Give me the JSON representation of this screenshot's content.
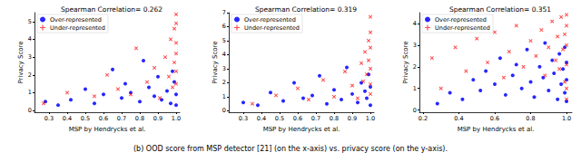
{
  "caption": "(b) OOD score from MSP detector [21] (on the x-axis) vs. privacy score (on the y-axis).",
  "chart_data": [
    {
      "type": "scatter",
      "title": "Spearman Correlation= 0.262",
      "x_label": "MSP by Hendrycks et al.",
      "y_label": "Privacy Score",
      "legend": "upper left",
      "grid": false,
      "xlim": [
        0.22,
        1.02
      ],
      "xticks": [
        0.3,
        0.4,
        0.5,
        0.6,
        0.7,
        0.8,
        0.9,
        {
          "value": 1,
          "label": "1.0"
        }
      ],
      "ylim": [
        -0.1,
        5.5
      ],
      "yticks": [
        0,
        1,
        2,
        3,
        4,
        5
      ],
      "series": [
        {
          "name": "Over-represented",
          "color": "#0000ff",
          "marker": "circle",
          "x": [
            0.28,
            0.35,
            0.42,
            0.5,
            0.55,
            0.6,
            0.65,
            0.7,
            0.72,
            0.75,
            0.8,
            0.82,
            0.85,
            0.88,
            0.9,
            0.92,
            0.95,
            0.97,
            0.98,
            0.99,
            1.0,
            1.0
          ],
          "values": [
            0.5,
            0.3,
            0.6,
            1.2,
            0.4,
            0.9,
            2.3,
            0.7,
            1.5,
            1.0,
            0.5,
            2.8,
            1.3,
            0.8,
            1.9,
            0.6,
            1.1,
            0.4,
            2.2,
            1.6,
            0.3,
            0.9
          ]
        },
        {
          "name": "Under-represented",
          "color": "#ff0000",
          "marker": "x",
          "x": [
            0.27,
            0.4,
            0.55,
            0.62,
            0.68,
            0.75,
            0.78,
            0.84,
            0.88,
            0.91,
            0.94,
            0.96,
            0.97,
            0.98,
            0.99,
            0.99,
            1.0,
            1.0,
            1.0,
            1.0,
            1.0,
            1.0
          ],
          "values": [
            0.4,
            1.0,
            0.8,
            2.0,
            1.2,
            0.9,
            3.5,
            1.6,
            2.4,
            0.7,
            3.0,
            1.9,
            4.0,
            1.3,
            2.7,
            4.6,
            5.4,
            4.9,
            3.8,
            3.2,
            2.2,
            1.5
          ]
        }
      ]
    },
    {
      "type": "scatter",
      "title": "Spearman Correlation= 0.319",
      "x_label": "MSP by Hendrycks et al.",
      "y_label": "Privacy Score",
      "legend": "upper left",
      "grid": false,
      "xlim": [
        0.22,
        1.02
      ],
      "xticks": [
        0.3,
        0.4,
        0.5,
        0.6,
        0.7,
        0.8,
        0.9,
        {
          "value": 1,
          "label": "1.0"
        }
      ],
      "ylim": [
        -0.1,
        7
      ],
      "yticks": [
        0,
        1,
        2,
        3,
        4,
        5,
        6,
        7
      ],
      "series": [
        {
          "name": "Over-represented",
          "color": "#0000ff",
          "marker": "circle",
          "x": [
            0.3,
            0.38,
            0.45,
            0.52,
            0.58,
            0.63,
            0.68,
            0.72,
            0.76,
            0.8,
            0.84,
            0.87,
            0.9,
            0.93,
            0.95,
            0.97,
            0.98,
            0.99,
            1.0,
            1.0
          ],
          "values": [
            0.6,
            0.4,
            1.3,
            0.7,
            2.0,
            0.9,
            1.1,
            2.5,
            0.5,
            1.5,
            0.8,
            3.1,
            1.2,
            0.6,
            2.0,
            1.4,
            0.9,
            2.6,
            0.4,
            1.7
          ]
        },
        {
          "name": "Under-represented",
          "color": "#ff0000",
          "marker": "x",
          "x": [
            0.35,
            0.48,
            0.6,
            0.66,
            0.74,
            0.8,
            0.86,
            0.9,
            0.93,
            0.95,
            0.96,
            0.97,
            0.98,
            0.99,
            0.99,
            1.0,
            1.0,
            1.0,
            1.0,
            1.0,
            1.0
          ],
          "values": [
            0.5,
            1.1,
            1.6,
            0.8,
            2.2,
            1.0,
            2.8,
            1.8,
            0.9,
            3.4,
            2.1,
            4.2,
            2.6,
            3.6,
            5.0,
            6.7,
            5.6,
            4.5,
            3.0,
            1.9,
            1.2
          ]
        }
      ]
    },
    {
      "type": "scatter",
      "title": "Spearman Correlation= 0.351",
      "x_label": "MSP by Hendrycks et al.",
      "y_label": "Privacy Score",
      "legend": "upper left",
      "grid": false,
      "xlim": [
        0.18,
        1.03
      ],
      "xticks": [
        0.2,
        0.4,
        0.6,
        0.8,
        {
          "value": 1,
          "label": "1.0"
        }
      ],
      "ylim": [
        -0.1,
        4.5
      ],
      "yticks": [
        0,
        1,
        2,
        3,
        4
      ],
      "series": [
        {
          "name": "Over-represented",
          "color": "#0000ff",
          "marker": "circle",
          "x": [
            0.28,
            0.35,
            0.42,
            0.48,
            0.52,
            0.55,
            0.6,
            0.63,
            0.66,
            0.7,
            0.72,
            0.75,
            0.78,
            0.8,
            0.82,
            0.85,
            0.87,
            0.88,
            0.9,
            0.92,
            0.93,
            0.95,
            0.96,
            0.97,
            0.98,
            0.99,
            0.99,
            1.0,
            1.0,
            1.0
          ],
          "values": [
            0.3,
            0.8,
            0.5,
            1.4,
            0.9,
            1.8,
            1.2,
            2.4,
            0.7,
            1.6,
            2.1,
            1.0,
            2.8,
            1.3,
            0.6,
            2.0,
            1.5,
            3.1,
            0.9,
            2.3,
            1.7,
            0.5,
            2.6,
            1.2,
            1.9,
            0.8,
            2.9,
            1.4,
            0.4,
            2.2
          ]
        },
        {
          "name": "Under-represented",
          "color": "#ff0000",
          "marker": "x",
          "x": [
            0.25,
            0.3,
            0.38,
            0.44,
            0.5,
            0.56,
            0.6,
            0.65,
            0.68,
            0.72,
            0.76,
            0.8,
            0.83,
            0.86,
            0.88,
            0.9,
            0.92,
            0.94,
            0.95,
            0.96,
            0.97,
            0.98,
            0.99,
            0.99,
            1.0,
            1.0,
            1.0,
            1.0,
            1.0,
            1.0
          ],
          "values": [
            2.4,
            1.0,
            2.9,
            1.8,
            3.3,
            2.2,
            3.6,
            1.5,
            2.7,
            3.9,
            2.0,
            3.2,
            2.5,
            3.7,
            1.6,
            2.9,
            4.1,
            2.3,
            3.4,
            1.9,
            4.3,
            2.8,
            3.5,
            1.3,
            4.4,
            3.9,
            3.0,
            2.1,
            1.0,
            0.5
          ]
        }
      ]
    }
  ]
}
